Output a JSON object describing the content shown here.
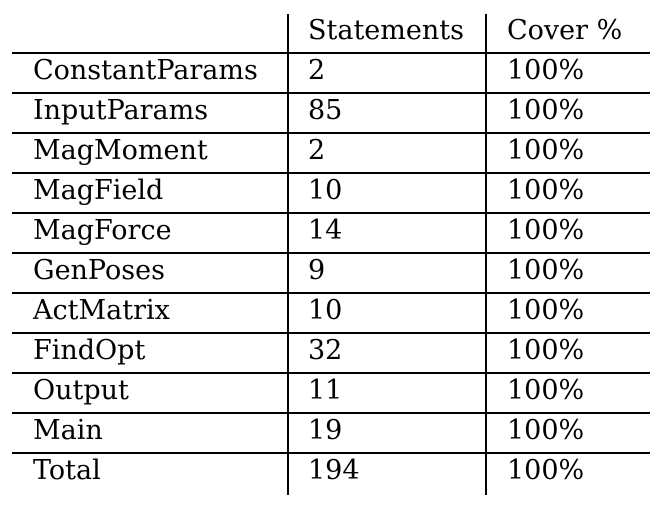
{
  "table": {
    "headers": [
      "",
      "Statements",
      "Cover %"
    ],
    "rows": [
      {
        "module": "ConstantParams",
        "statements": "2",
        "cover": "100%"
      },
      {
        "module": "InputParams",
        "statements": "85",
        "cover": "100%"
      },
      {
        "module": "MagMoment",
        "statements": "2",
        "cover": "100%"
      },
      {
        "module": "MagField",
        "statements": "10",
        "cover": "100%"
      },
      {
        "module": "MagForce",
        "statements": "14",
        "cover": "100%"
      },
      {
        "module": "GenPoses",
        "statements": "9",
        "cover": "100%"
      },
      {
        "module": "ActMatrix",
        "statements": "10",
        "cover": "100%"
      },
      {
        "module": "FindOpt",
        "statements": "32",
        "cover": "100%"
      },
      {
        "module": "Output",
        "statements": "11",
        "cover": "100%"
      },
      {
        "module": "Main",
        "statements": "19",
        "cover": "100%"
      },
      {
        "module": "Total",
        "statements": "194",
        "cover": "100%"
      }
    ]
  }
}
